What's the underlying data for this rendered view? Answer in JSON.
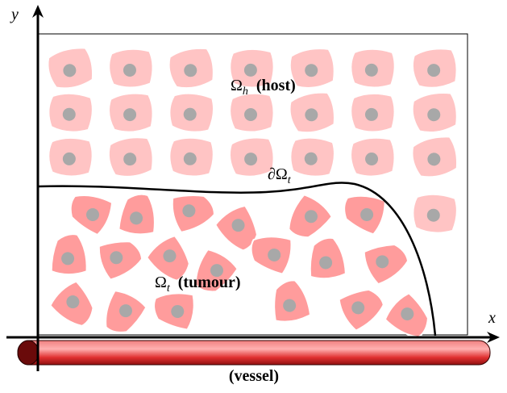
{
  "axes": {
    "x": "x",
    "y": "y"
  },
  "host": {
    "symbol": "Ω",
    "subscript": "h",
    "label": "(host)"
  },
  "boundary": {
    "symbol": "∂Ω",
    "subscript": "t"
  },
  "tumour": {
    "symbol": "Ω",
    "subscript": "t",
    "label": "(tumour)"
  },
  "vessel": {
    "label": "(vessel)"
  }
}
